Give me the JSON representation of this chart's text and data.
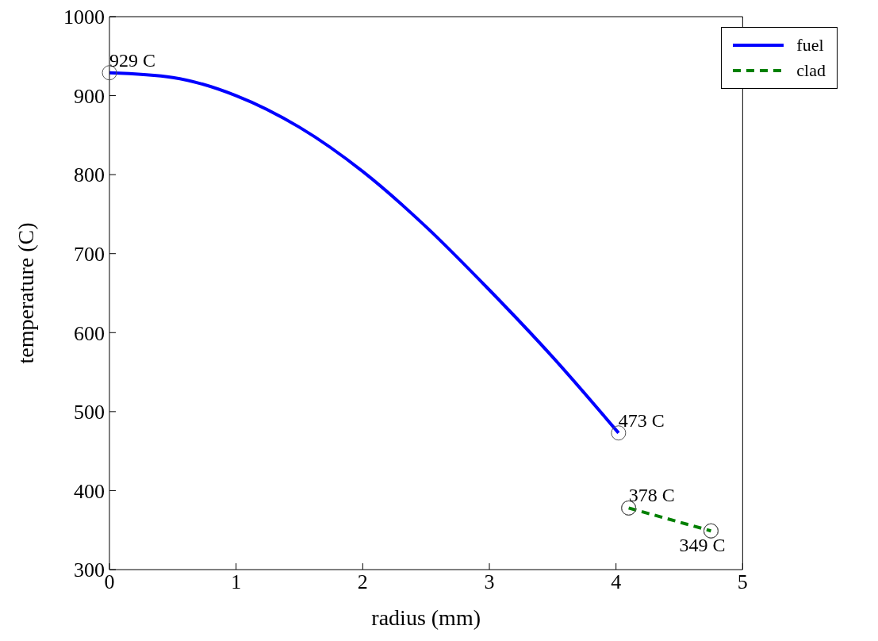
{
  "chart_data": {
    "type": "line",
    "xlabel": "radius (mm)",
    "ylabel": "temperature (C)",
    "xlim": [
      0,
      5
    ],
    "ylim": [
      300,
      1000
    ],
    "xticks": [
      0,
      1,
      2,
      3,
      4,
      5
    ],
    "yticks": [
      300,
      400,
      500,
      600,
      700,
      800,
      900,
      1000
    ],
    "legend": "top right",
    "series": [
      {
        "name": "fuel",
        "color": "#0000ff",
        "line_style": "solid",
        "x": [
          0,
          0.5,
          1,
          1.5,
          2,
          2.5,
          3,
          3.5,
          4.02
        ],
        "values": [
          929,
          923,
          900,
          860,
          804,
          734,
          654,
          569,
          473
        ]
      },
      {
        "name": "clad",
        "color": "#008000",
        "line_style": "dashed",
        "marker": "circle",
        "x": [
          4.1,
          4.75
        ],
        "values": [
          378,
          349
        ]
      }
    ],
    "annotations": [
      {
        "text": "929 C",
        "x": 0,
        "y": 929
      },
      {
        "text": "473 C",
        "x": 4.02,
        "y": 473
      },
      {
        "text": "378 C",
        "x": 4.1,
        "y": 378
      },
      {
        "text": "349 C",
        "x": 4.75,
        "y": 349
      }
    ]
  }
}
